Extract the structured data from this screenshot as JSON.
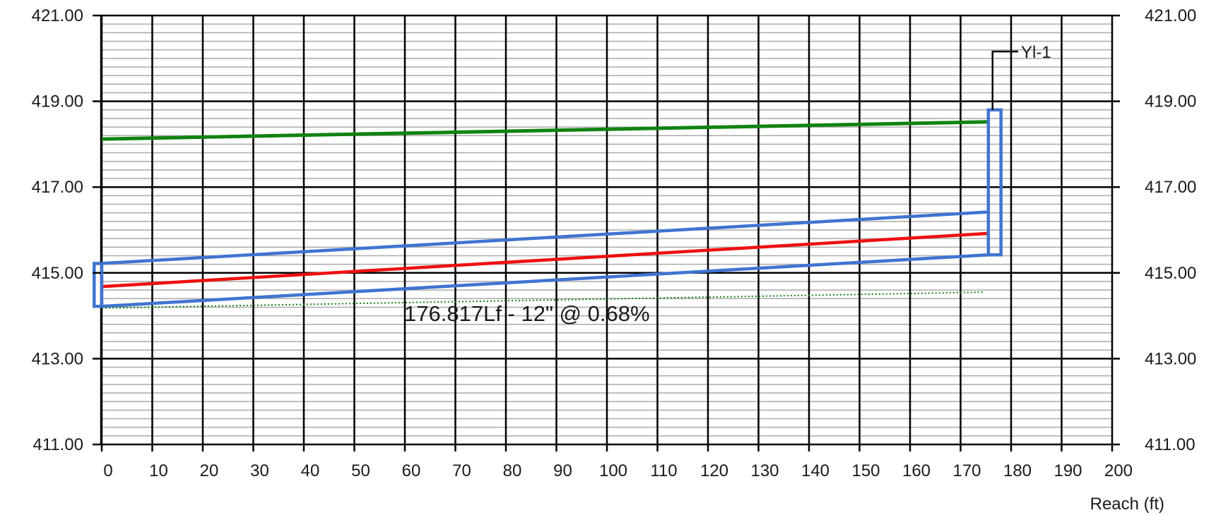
{
  "chart_data": {
    "type": "line",
    "xlabel": "Reach (ft)",
    "ylabel": "",
    "xlim": [
      -1.5,
      200
    ],
    "ylim": [
      411,
      421
    ],
    "x_ticks": [
      0,
      10,
      20,
      30,
      40,
      50,
      60,
      70,
      80,
      90,
      100,
      110,
      120,
      130,
      140,
      150,
      160,
      170,
      180,
      190,
      200
    ],
    "x_tick_labels": [
      "0",
      "10",
      "20",
      "30",
      "40",
      "50",
      "60",
      "70",
      "80",
      "90",
      "100",
      "110",
      "120",
      "130",
      "140",
      "150",
      "160",
      "170",
      "180",
      "190",
      "200"
    ],
    "y_ticks": [
      411,
      413,
      415,
      417,
      419,
      421
    ],
    "y_tick_labels": [
      "411.00",
      "413.00",
      "415.00",
      "417.00",
      "419.00",
      "421.00"
    ],
    "y_minor_step": 0.2,
    "grid": true,
    "legend": "none",
    "colors": {
      "pipe": "#3f74d1",
      "hgl": "#ee1010",
      "egl": "#118211",
      "ground": "#118211",
      "grid_major": "#000000",
      "grid_minor": "#aaaaaa"
    },
    "series": [
      {
        "key": "egl",
        "style": "solid",
        "x": [
          0,
          175.5
        ],
        "y": [
          418.12,
          418.52
        ]
      },
      {
        "key": "pipe_crown",
        "style": "solid",
        "x": [
          0,
          175.5
        ],
        "y": [
          415.22,
          416.42
        ]
      },
      {
        "key": "hgl",
        "style": "solid",
        "x": [
          0,
          175.5
        ],
        "y": [
          414.68,
          415.92
        ]
      },
      {
        "key": "pipe_invert",
        "style": "solid",
        "x": [
          0,
          175.5
        ],
        "y": [
          414.22,
          415.42
        ]
      },
      {
        "key": "ground",
        "style": "dotted",
        "x": [
          0,
          174.5
        ],
        "y": [
          414.18,
          414.55
        ]
      }
    ],
    "structures": [
      {
        "name": "",
        "x0": -1.5,
        "x1": 0,
        "y0": 414.22,
        "y1": 415.22
      },
      {
        "name": "Yl-1",
        "x0": 175.5,
        "x1": 178,
        "y0": 415.42,
        "y1": 418.8
      }
    ],
    "node_label": "Yl-1",
    "annotation": "176.817Lf - 12\" @ 0.68%"
  }
}
